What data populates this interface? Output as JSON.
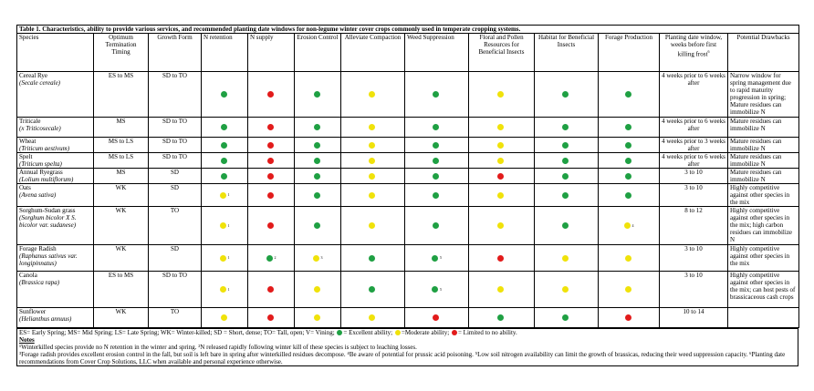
{
  "title": "Table 1.  Characteristics, ability to provide various services, and recommended planting date windows for non-legume winter cover crops commonly used in temperate cropping systems.",
  "columns": [
    "Species",
    "Optimum Termination Timing",
    "Growth Form",
    "N retention",
    "N supply",
    "Erosion Control",
    "Alleviate Compaction",
    "Weed Suppression",
    "Floral and Pollen Resources for Beneficial Insects",
    "Habitat for Beneficial Insects",
    "Forage Production",
    "Planting date window, weeks before first killing frost",
    "Potential Drawbacks"
  ],
  "planting_header_sup": "6",
  "rows": [
    {
      "name": "Cereal Rye",
      "sci": "(Secale cereale)",
      "timing": "ES to MS",
      "form": "SD to TO",
      "ratings": [
        "green",
        "red",
        "green",
        "yellow",
        "green",
        "yellow",
        "green",
        "green"
      ],
      "sups": [
        "",
        "",
        "",
        "",
        "",
        "",
        "",
        ""
      ],
      "planting": "4 weeks prior to 6 weeks after",
      "drawbacks": "Narrow window for spring management due to rapid maturity progression in spring; Mature residues can immobilize N"
    },
    {
      "name": "Triticale",
      "sci": "(x Triticosecale)",
      "timing": "MS",
      "form": "SD to TO",
      "ratings": [
        "green",
        "red",
        "green",
        "yellow",
        "green",
        "yellow",
        "green",
        "green"
      ],
      "sups": [
        "",
        "",
        "",
        "",
        "",
        "",
        "",
        ""
      ],
      "planting": "4 weeks prior to 6 weeks after",
      "drawbacks": "Mature residues can immobilize N"
    },
    {
      "name": "Wheat",
      "sci": "(Triticum aestivum)",
      "timing": "MS to LS",
      "form": "SD to TO",
      "ratings": [
        "green",
        "red",
        "green",
        "yellow",
        "green",
        "yellow",
        "green",
        "green"
      ],
      "sups": [
        "",
        "",
        "",
        "",
        "",
        "",
        "",
        ""
      ],
      "planting": "4 weeks prior to 3 weeks after",
      "drawbacks": "Mature residues can immobilize N"
    },
    {
      "name": "Spelt",
      "sci": "(Triticum spelta)",
      "timing": "MS to LS",
      "form": "SD to TO",
      "ratings": [
        "green",
        "red",
        "green",
        "yellow",
        "green",
        "yellow",
        "green",
        "green"
      ],
      "sups": [
        "",
        "",
        "",
        "",
        "",
        "",
        "",
        ""
      ],
      "planting": "4 weeks prior to 6 weeks after",
      "drawbacks": "Mature residues can immobilize N"
    },
    {
      "name": "Annual Ryegrass",
      "sci": "(Lolium multiflorum)",
      "timing": "MS",
      "form": "SD",
      "ratings": [
        "green",
        "red",
        "green",
        "yellow",
        "green",
        "red",
        "green",
        "green"
      ],
      "sups": [
        "",
        "",
        "",
        "",
        "",
        "",
        "",
        ""
      ],
      "planting": "3 to 10",
      "drawbacks": "Mature residues can immobilize N"
    },
    {
      "name": "Oats",
      "sci": "(Avena sativa)",
      "timing": "WK",
      "form": "SD",
      "ratings": [
        "yellow",
        "red",
        "green",
        "yellow",
        "green",
        "yellow",
        "green",
        "green"
      ],
      "sups": [
        "1",
        "",
        "",
        "",
        "",
        "",
        "",
        ""
      ],
      "planting": "3 to 10",
      "drawbacks": "Highly competitive against other species in the mix"
    },
    {
      "name": "Sorghum-Sudan grass",
      "sci": "(Sorghum bicolor X S. bicolor var. sudanese)",
      "timing": "WK",
      "form": "TO",
      "ratings": [
        "yellow",
        "red",
        "green",
        "yellow",
        "green",
        "yellow",
        "green",
        "yellow"
      ],
      "sups": [
        "1",
        "",
        "",
        "",
        "",
        "",
        "",
        "4"
      ],
      "planting": "8 to 12",
      "drawbacks": "Highly competitive against other species in the mix; high carbon residues can immobilize N"
    },
    {
      "name": "Forage Radish",
      "sci": "(Raphanus sativus var. longipinnatus)",
      "timing": "WK",
      "form": "SD",
      "ratings": [
        "yellow",
        "green",
        "yellow",
        "green",
        "green",
        "red",
        "yellow",
        "yellow"
      ],
      "sups": [
        "1",
        "2",
        "3",
        "",
        "5",
        "",
        "",
        ""
      ],
      "planting": "3 to 10",
      "drawbacks": "Highly competitive against other species in the mix"
    },
    {
      "name": "Canola",
      "sci": "(Brassica rapa)",
      "timing": "ES to MS",
      "form": "SD to TO",
      "ratings": [
        "yellow",
        "red",
        "yellow",
        "green",
        "green",
        "yellow",
        "yellow",
        "yellow"
      ],
      "sups": [
        "1",
        "",
        "",
        "",
        "5",
        "",
        "",
        ""
      ],
      "planting": "3 to 10",
      "drawbacks": "Highly competitive against other species in the mix; can host pests of brassicaceous cash crops"
    },
    {
      "name": "Sunflower",
      "sci": "(Helianthus annuus)",
      "timing": "WK",
      "form": "TO",
      "ratings": [
        "yellow",
        "red",
        "yellow",
        "yellow",
        "red",
        "green",
        "green",
        "red"
      ],
      "sups": [
        "",
        "",
        "",
        "",
        "",
        "",
        "",
        ""
      ],
      "planting": "10 to 14",
      "drawbacks": ""
    }
  ],
  "legend": {
    "text_a": "ES= Early Spring;  MS= Mid Spring; LS= Late Spring; WK= Winter-killed; SD = Short, dense; TO= Tall, open; V= Vining;",
    "text_b": "= Excellent ability;",
    "text_c": "=Moderate ability;",
    "text_d": "= Limited to no ability."
  },
  "notes": {
    "heading": "Notes",
    "line1": "¹Winterkilled species provide no N retention in the winter and spring.  ²N released rapidly following winter kill of these species is subject to leaching losses.",
    "line2": "³Forage radish provides excellent erosion control in the fall, but soil is left bare in spring after winterkilled residues decompose. ⁴Be aware of potential for prussic acid poisoning. ⁵Low soil nitrogen availability can limit the growth of brassicas, reducing their weed suppression capacity.  ⁶Planting date recommendations from Cover Crop Solutions, LLC when available and personal experience otherwise."
  },
  "colors": {
    "green": "#1fa043",
    "yellow": "#f0e20a",
    "red": "#e21b1b"
  }
}
